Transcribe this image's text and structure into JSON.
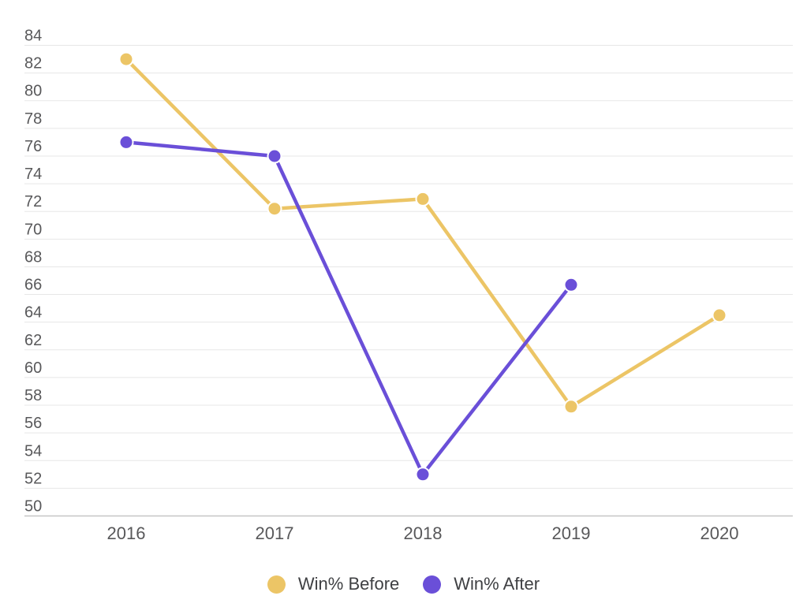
{
  "chart_data": {
    "type": "line",
    "title": "",
    "xlabel": "",
    "ylabel": "",
    "categories": [
      "2016",
      "2017",
      "2018",
      "2019",
      "2020"
    ],
    "series": [
      {
        "name": "Win% Before",
        "color": "#ECC566",
        "values": [
          83.0,
          72.2,
          72.9,
          57.9,
          64.5
        ]
      },
      {
        "name": "Win% After",
        "color": "#6A4FD8",
        "values": [
          77.0,
          76.0,
          53.0,
          66.7,
          null
        ]
      }
    ],
    "ylim": [
      50,
      84
    ],
    "y_step": 2,
    "y_tick_labels": [
      "84",
      "82",
      "80",
      "78",
      "76",
      "74",
      "72",
      "70",
      "68",
      "66",
      "64",
      "62",
      "60",
      "58",
      "56",
      "54",
      "52",
      "50"
    ],
    "grid": true,
    "legend_position": "bottom",
    "colors": {
      "background": "#ffffff",
      "gridline": "#e7e7e7",
      "axis_line": "#c6c6c6",
      "tick_text": "#58585a",
      "legend_text": "#3f4043",
      "marker_halo": "#ffffff"
    }
  }
}
